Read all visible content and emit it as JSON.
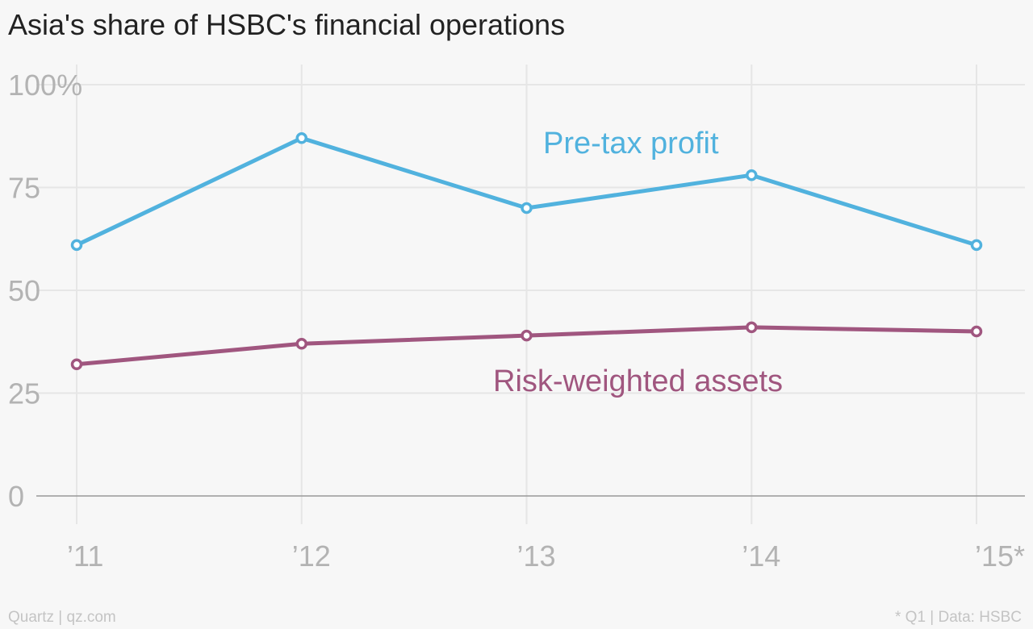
{
  "title": "Asia's share of HSBC's financial operations",
  "footer": {
    "source": "Quartz | qz.com",
    "note": "* Q1 | Data: HSBC"
  },
  "chart_data": {
    "type": "line",
    "categories": [
      "’11",
      "’12",
      "’13",
      "’14",
      "’15*"
    ],
    "ylim": [
      0,
      100
    ],
    "yticks": [
      {
        "value": 100,
        "label": "100%"
      },
      {
        "value": 75,
        "label": "75"
      },
      {
        "value": 50,
        "label": "50"
      },
      {
        "value": 25,
        "label": "25"
      },
      {
        "value": 0,
        "label": "0"
      }
    ],
    "grid": true,
    "series": [
      {
        "name": "Pre-tax profit",
        "color": "#51b2de",
        "values": [
          61,
          87,
          70,
          78,
          61
        ]
      },
      {
        "name": "Risk-weighted assets",
        "color": "#a0567f",
        "values": [
          32,
          37,
          39,
          41,
          40
        ]
      }
    ]
  }
}
